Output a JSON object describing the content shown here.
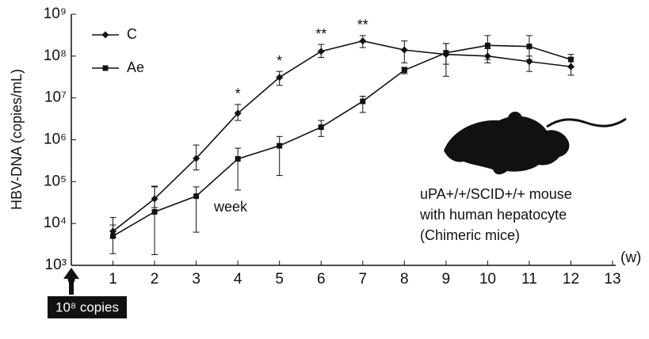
{
  "chart_data": {
    "type": "line",
    "y_label": "HBV-DNA (copies/mL)",
    "x_unit_label": "(w)",
    "x": [
      1,
      2,
      3,
      4,
      5,
      6,
      7,
      8,
      9,
      10,
      11,
      12
    ],
    "xlim": [
      0,
      13
    ],
    "xticks": [
      0,
      1,
      2,
      3,
      4,
      5,
      6,
      7,
      8,
      9,
      10,
      11,
      12,
      13
    ],
    "ylim": [
      1000,
      1000000000
    ],
    "log_y": true,
    "yticks": [
      {
        "value": 1000,
        "label": "10³"
      },
      {
        "value": 10000,
        "label": "10⁴"
      },
      {
        "value": 100000,
        "label": "10⁵"
      },
      {
        "value": 1000000,
        "label": "10⁶"
      },
      {
        "value": 10000000,
        "label": "10⁷"
      },
      {
        "value": 100000000,
        "label": "10⁸"
      },
      {
        "value": 1000000000,
        "label": "10⁹"
      }
    ],
    "legend": "top-left",
    "series": [
      {
        "name": "C",
        "color": "#111111",
        "marker": "diamond",
        "values": [
          6500,
          39000,
          360000,
          4300000,
          31000000,
          130000000,
          230000000,
          140000000,
          110000000,
          100000000,
          74000000,
          56000000
        ],
        "upper": [
          14000,
          78000,
          750000,
          7000000,
          43000000,
          190000000,
          310000000,
          230000000,
          200000000,
          150000000,
          100000000,
          93000000
        ],
        "lower": [
          4600,
          24000,
          190000,
          2900000,
          20000000,
          93000000,
          160000000,
          69000000,
          64000000,
          69000000,
          43000000,
          35000000
        ]
      },
      {
        "name": "Ae",
        "color": "#111111",
        "marker": "square",
        "values": [
          5000,
          19000,
          45000,
          350000,
          720000,
          2000000,
          8300000,
          46000000,
          120000000,
          180000000,
          170000000,
          83000000
        ],
        "upper": [
          9200,
          75000,
          75000,
          630000,
          1200000,
          2900000,
          11000000,
          54000000,
          200000000,
          310000000,
          310000000,
          110000000
        ],
        "lower": [
          1900,
          1800,
          6200,
          63000,
          140000,
          1200000,
          4500000,
          38000000,
          33000000,
          83000000,
          83000000,
          54000000
        ]
      }
    ],
    "significance": [
      {
        "x": 4,
        "label": "*"
      },
      {
        "x": 5,
        "label": "*"
      },
      {
        "x": 6,
        "label": "**"
      },
      {
        "x": 7,
        "label": "**"
      }
    ],
    "annotations": [
      "week",
      "uPA+/+/SCID+/+ mouse",
      "with human hepatocyte",
      "(Chimeric mice)"
    ],
    "inoculum_label": "10⁸ copies"
  }
}
